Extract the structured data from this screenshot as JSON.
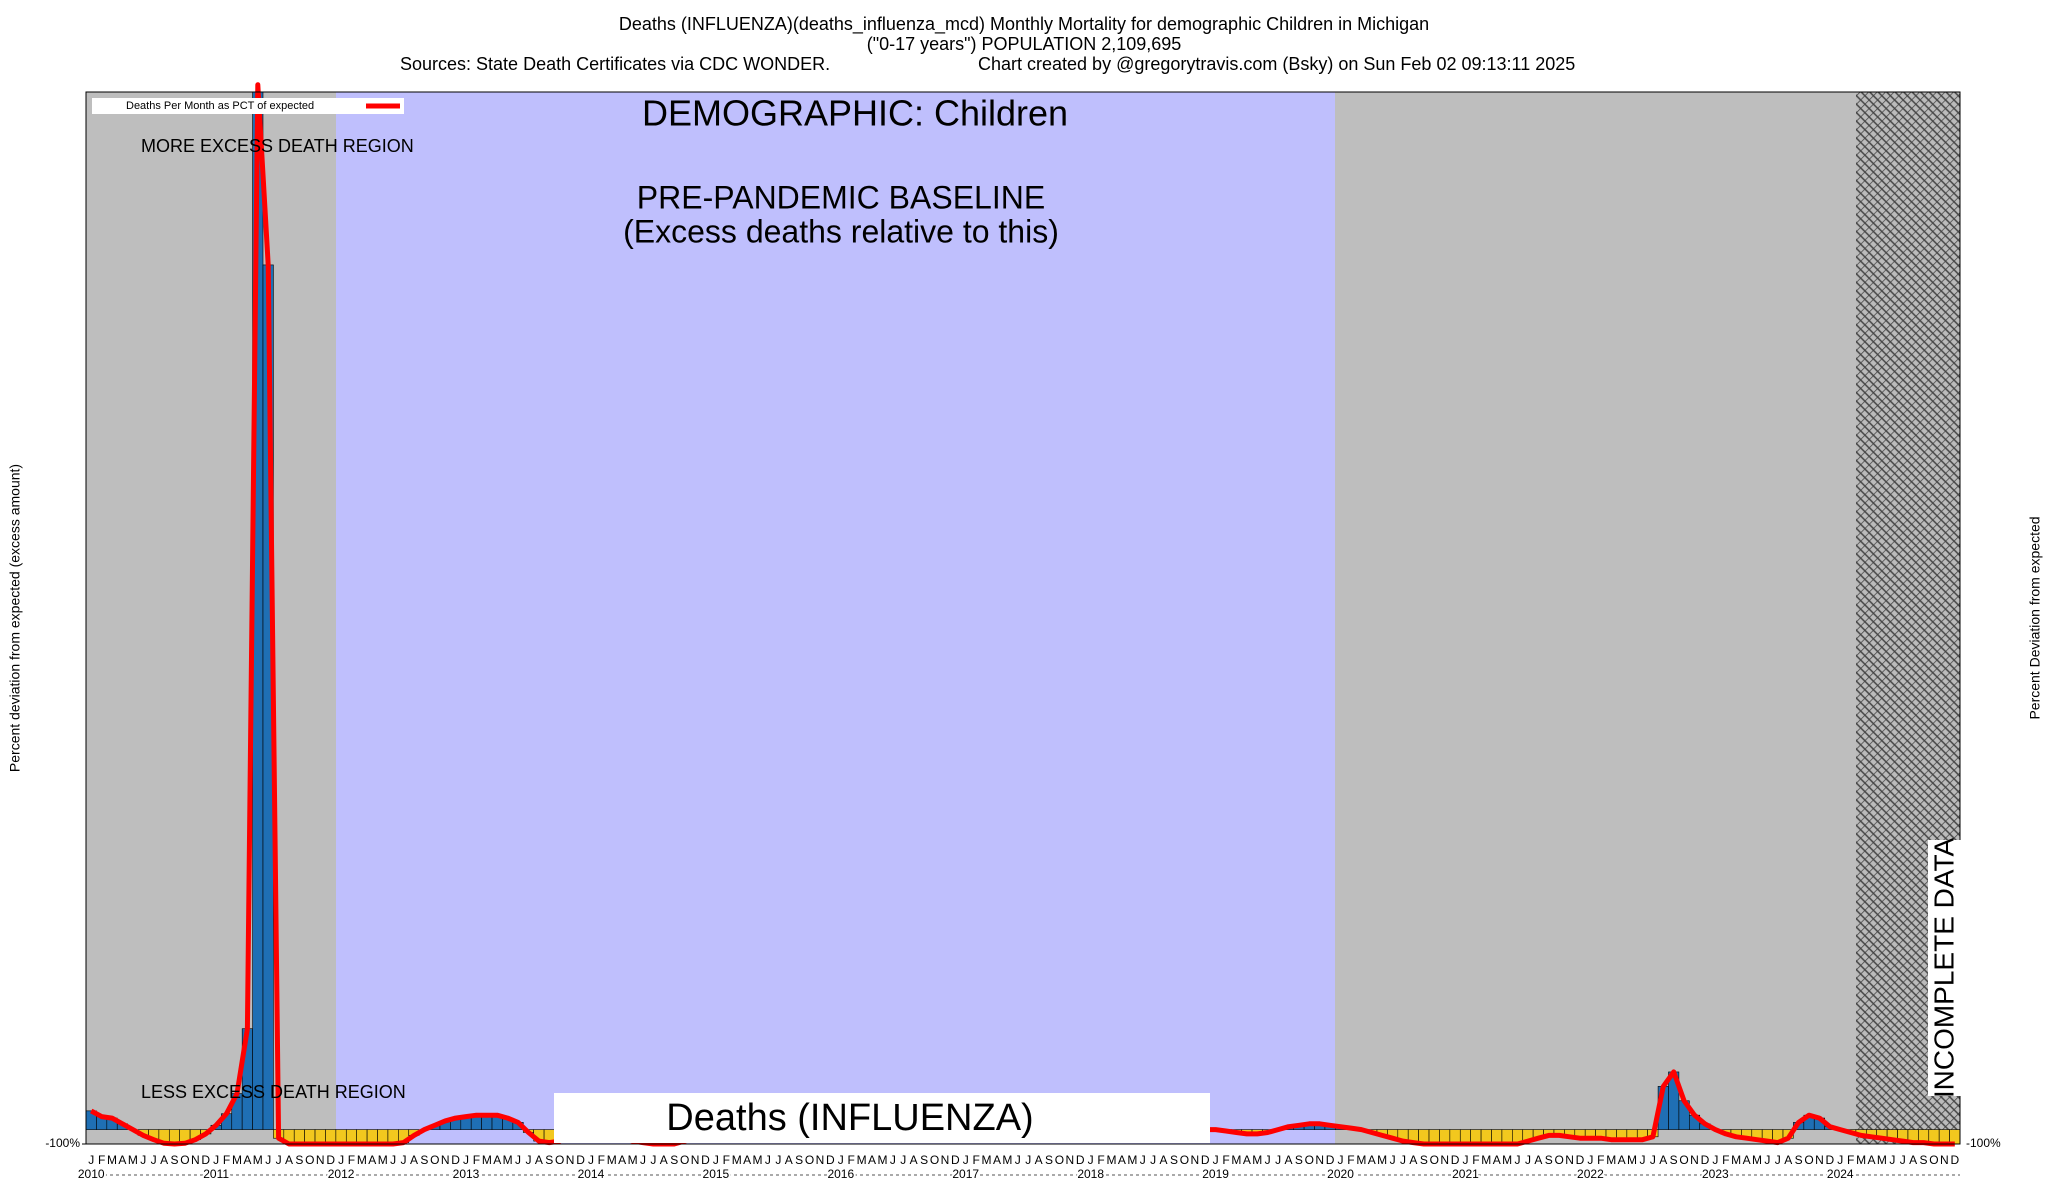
{
  "chart_data": {
    "type": "bar_line",
    "title": [
      "Deaths (INFLUENZA)(deaths_influenza_mcd) Monthly Mortality for demographic Children in Michigan",
      "(\"0-17 years\") POPULATION 2,109,695"
    ],
    "sources": "Sources: State Death Certificates via CDC WONDER.",
    "credit": "Chart created by @gregorytravis.com (Bsky) on Sun Feb 02 09:13:11 2025",
    "ylabel": "Percent deviation from expected (excess amount)",
    "y2label": "Percent Deviation from expected",
    "annotations": {
      "demographic": "DEMOGRAPHIC: Children",
      "more": "MORE EXCESS DEATH REGION",
      "less": "LESS EXCESS DEATH REGION",
      "baseline": "PRE-PANDEMIC BASELINE",
      "baseline_note": "(Excess deaths relative to this)",
      "box": "Deaths (INFLUENZA)",
      "incomplete": "INCOMPLETE DATA"
    },
    "years": [
      "2010",
      "2011",
      "2012",
      "2013",
      "2014",
      "2015",
      "2016",
      "2017",
      "2018",
      "2019",
      "2020",
      "2021",
      "2022",
      "2023",
      "2024"
    ],
    "categories": [
      "J",
      "F",
      "M",
      "A",
      "M",
      "J",
      "J",
      "A",
      "S",
      "O",
      "N",
      "D",
      "J",
      "F",
      "M",
      "A",
      "M",
      "J",
      "J",
      "A",
      "S",
      "O",
      "N",
      "D",
      "J",
      "F",
      "M",
      "A",
      "M",
      "J",
      "J",
      "A",
      "S",
      "O",
      "N",
      "D",
      "J",
      "F",
      "M",
      "A",
      "M",
      "J",
      "J",
      "A",
      "S",
      "O",
      "N",
      "D",
      "J",
      "F",
      "M",
      "A",
      "M",
      "J",
      "J",
      "A",
      "S",
      "O",
      "N",
      "D",
      "J",
      "F",
      "M",
      "A",
      "M",
      "J",
      "J",
      "A",
      "S",
      "O",
      "N",
      "D",
      "J",
      "F",
      "M",
      "A",
      "M",
      "J",
      "J",
      "A",
      "S",
      "O",
      "N",
      "D",
      "J",
      "F",
      "M",
      "A",
      "M",
      "J",
      "J",
      "A",
      "S",
      "O",
      "N",
      "D",
      "J",
      "F",
      "M",
      "A",
      "M",
      "J",
      "J",
      "A",
      "S",
      "O",
      "N",
      "D",
      "J",
      "F",
      "M",
      "A",
      "M",
      "J",
      "J",
      "A",
      "S",
      "O",
      "N",
      "D",
      "J",
      "F",
      "M",
      "A",
      "M",
      "J",
      "J",
      "A",
      "S",
      "O",
      "N",
      "D",
      "J",
      "F",
      "M",
      "A",
      "M",
      "J",
      "J",
      "A",
      "S",
      "O",
      "N",
      "D",
      "J",
      "F",
      "M",
      "A",
      "M",
      "J",
      "J",
      "A",
      "S",
      "O",
      "N",
      "D",
      "J",
      "F",
      "M",
      "A",
      "M",
      "J",
      "J",
      "A",
      "S",
      "O",
      "N",
      "D",
      "J",
      "F",
      "M",
      "A",
      "M",
      "J",
      "J",
      "A",
      "S",
      "O",
      "N",
      "D"
    ],
    "series": [
      {
        "name": "Deaths Per Month as PCT of expected",
        "color": "#ff0000",
        "values": [
          130,
          90,
          80,
          40,
          0,
          -40,
          -70,
          -95,
          -100,
          -95,
          -70,
          -30,
          30,
          110,
          250,
          700,
          7250,
          6000,
          -60,
          -100,
          -100,
          -100,
          -100,
          -100,
          -100,
          -100,
          -100,
          -100,
          -100,
          -100,
          -90,
          -40,
          0,
          30,
          60,
          80,
          90,
          100,
          100,
          100,
          80,
          50,
          -20,
          -80,
          -90,
          -80,
          -40,
          -20,
          -10,
          -20,
          -40,
          -60,
          -80,
          -90,
          -100,
          -100,
          -100,
          -80,
          -60,
          -50,
          -40,
          -40,
          -40,
          -40,
          -40,
          -40,
          -40,
          -40,
          -40,
          -40,
          -40,
          -40,
          -30,
          -20,
          -10,
          -10,
          -20,
          -30,
          -30,
          -20,
          -10,
          0,
          0,
          -10,
          -20,
          -20,
          -10,
          0,
          0,
          -10,
          -20,
          -20,
          -10,
          0,
          10,
          10,
          0,
          -10,
          -20,
          -20,
          -10,
          0,
          0,
          -10,
          -20,
          -20,
          -10,
          0,
          0,
          -10,
          -20,
          -30,
          -30,
          -20,
          0,
          20,
          30,
          40,
          40,
          30,
          20,
          10,
          0,
          -20,
          -40,
          -60,
          -80,
          -90,
          -100,
          -100,
          -100,
          -100,
          -100,
          -100,
          -100,
          -100,
          -100,
          -100,
          -80,
          -60,
          -40,
          -40,
          -50,
          -60,
          -60,
          -60,
          -70,
          -70,
          -70,
          -70,
          -50,
          300,
          400,
          200,
          100,
          40,
          0,
          -30,
          -50,
          -60,
          -70,
          -80,
          -90,
          -60,
          50,
          100,
          80,
          20,
          0,
          -20,
          -40,
          -50,
          -60,
          -70,
          -80,
          -90,
          -90,
          -100,
          -100,
          -100
        ]
      }
    ],
    "bar_colors": {
      "positive": "#1f6fb4",
      "negative": "#f2c81e"
    },
    "ylim": [
      -100,
      7200
    ],
    "yticks": [
      {
        "value": -100,
        "label": "-100%"
      }
    ]
  }
}
